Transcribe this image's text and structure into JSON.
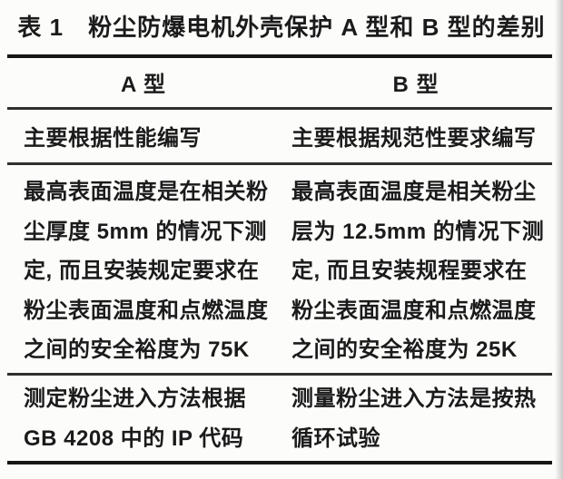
{
  "document": {
    "title": "表 1　粉尘防爆电机外壳保护 A 型和 B 型的差别",
    "columns": [
      {
        "key": "a",
        "header": "A 型"
      },
      {
        "key": "b",
        "header": "B 型"
      }
    ],
    "rows": [
      {
        "a": [
          "主要根据性能编写"
        ],
        "b": [
          "主要根据规范性要求编写"
        ]
      },
      {
        "a": [
          "最高表面温度是在相关粉",
          "尘厚度 5mm 的情况下测",
          "定, 而且安装规定要求在",
          "粉尘表面温度和点燃温度",
          "之间的安全裕度为 75K"
        ],
        "b": [
          "最高表面温度是相关粉尘",
          "层为 12.5mm 的情况下测",
          "定, 而且安装规程要求在",
          "粉尘表面温度和点燃温度",
          "之间的安全裕度为 25K"
        ]
      },
      {
        "a": [
          "测定粉尘进入方法根据",
          "GB 4208 中的 IP 代码"
        ],
        "b": [
          "测量粉尘进入方法是按热",
          "循环试验"
        ]
      }
    ],
    "colors": {
      "text": "#1b1b1b",
      "rule_heavy": "#161616",
      "rule_light": "#2f2f2f",
      "background": "#fcfcfb"
    }
  }
}
